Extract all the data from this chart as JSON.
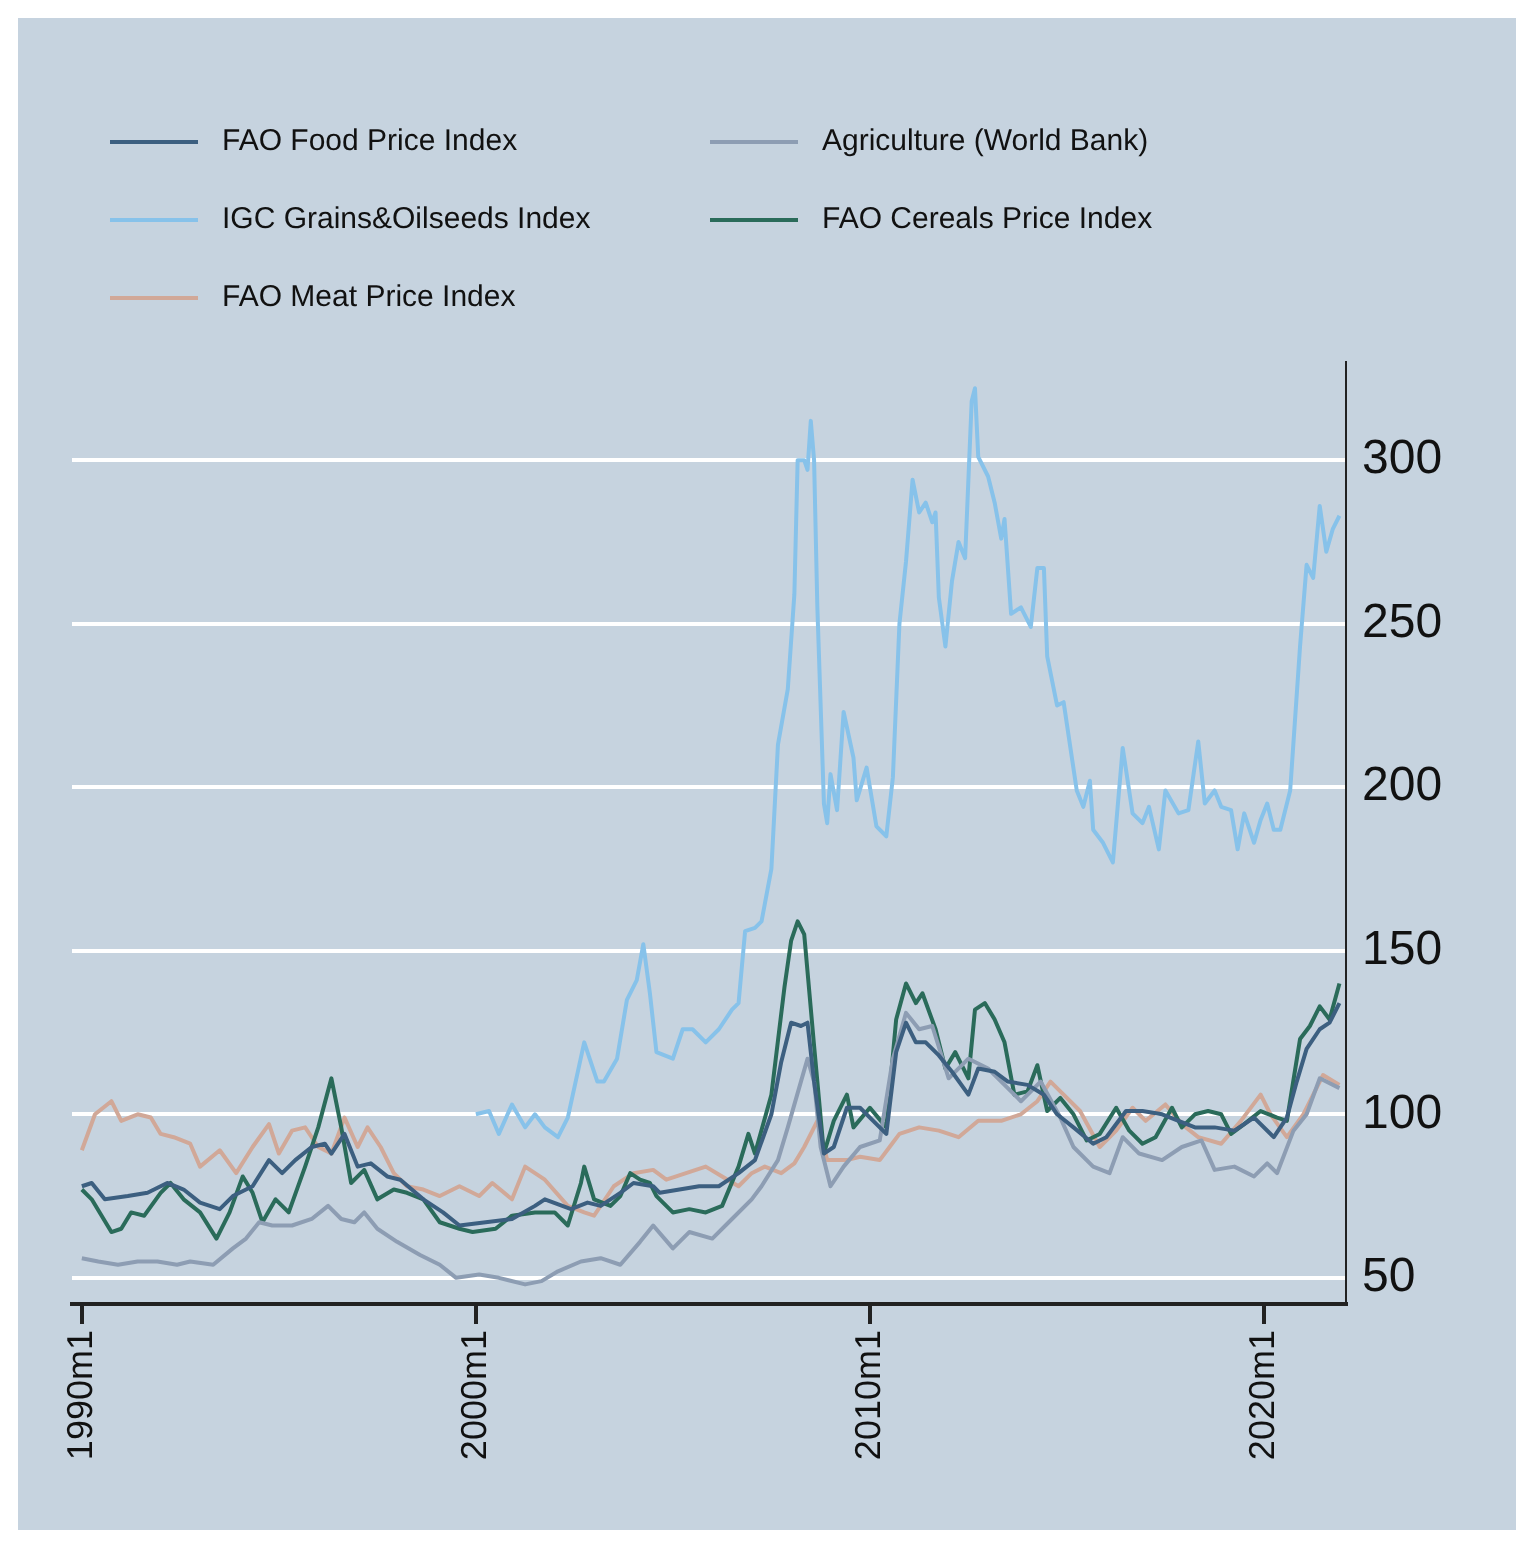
{
  "chart_data": {
    "type": "line",
    "legend": "top left",
    "grid": "y",
    "marker": "none",
    "line_style": "solid",
    "xlim": [
      "1989-10",
      "2022-02"
    ],
    "xticks": [
      {
        "value": "1990-01",
        "label": "1990m1"
      },
      {
        "value": "2000-01",
        "label": "2000m1"
      },
      {
        "value": "2010-01",
        "label": "2010m1"
      },
      {
        "value": "2020-01",
        "label": "2020m1"
      }
    ],
    "ylim": [
      42,
      330
    ],
    "yticks": [
      50,
      100,
      150,
      200,
      250,
      300
    ],
    "series": [
      {
        "name": "FAO Food Price Index",
        "color": "#3c5f80",
        "x": [
          "1990-01",
          "1990-04",
          "1990-08",
          "1991-03",
          "1991-09",
          "1992-03",
          "1992-08",
          "1993-01",
          "1993-07",
          "1993-11",
          "1994-05",
          "1994-10",
          "1995-02",
          "1995-06",
          "1995-11",
          "1996-03",
          "1996-05",
          "1996-09",
          "1997-01",
          "1997-05",
          "1997-10",
          "1998-02",
          "1998-09",
          "1999-03",
          "1999-08",
          "2000-04",
          "2000-12",
          "2001-07",
          "2001-10",
          "2002-06",
          "2002-11",
          "2003-03",
          "2003-09",
          "2004-01",
          "2004-07",
          "2004-09",
          "2005-03",
          "2005-09",
          "2006-03",
          "2006-09",
          "2007-02",
          "2007-07",
          "2007-10",
          "2008-01",
          "2008-04",
          "2008-06",
          "2008-08",
          "2008-11",
          "2009-02",
          "2009-06",
          "2009-10",
          "2010-02",
          "2010-06",
          "2010-09",
          "2010-12",
          "2011-03",
          "2011-06",
          "2011-10",
          "2012-02",
          "2012-07",
          "2012-10",
          "2013-03",
          "2013-07",
          "2014-01",
          "2014-06",
          "2014-10",
          "2015-03",
          "2015-09",
          "2016-01",
          "2016-07",
          "2016-12",
          "2017-06",
          "2017-11",
          "2018-04",
          "2018-10",
          "2019-04",
          "2019-10",
          "2020-04",
          "2020-08",
          "2020-11",
          "2021-02",
          "2021-06",
          "2021-09",
          "2021-12"
        ],
        "values": [
          78,
          79,
          74,
          75,
          76,
          79,
          77,
          73,
          71,
          75,
          78,
          86,
          82,
          86,
          90,
          91,
          88,
          94,
          84,
          85,
          81,
          80,
          74,
          70,
          66,
          67,
          68,
          72,
          74,
          71,
          73,
          72,
          76,
          79,
          78,
          76,
          77,
          78,
          78,
          82,
          86,
          100,
          116,
          128,
          127,
          128,
          110,
          88,
          90,
          102,
          102,
          98,
          94,
          119,
          128,
          122,
          122,
          118,
          113,
          106,
          114,
          113,
          110,
          109,
          106,
          100,
          96,
          91,
          93,
          101,
          101,
          100,
          98,
          96,
          96,
          95,
          99,
          93,
          99,
          110,
          120,
          126,
          128,
          134
        ]
      },
      {
        "name": "Agriculture (World Bank)",
        "color": "#8d9db3",
        "x": [
          "1990-01",
          "1990-06",
          "1990-12",
          "1991-06",
          "1991-12",
          "1992-06",
          "1992-10",
          "1993-05",
          "1993-11",
          "1994-03",
          "1994-07",
          "1994-11",
          "1995-05",
          "1995-11",
          "1996-04",
          "1996-08",
          "1996-12",
          "1997-03",
          "1997-07",
          "1998-01",
          "1998-08",
          "1999-02",
          "1999-07",
          "2000-02",
          "2000-08",
          "2001-04",
          "2001-09",
          "2002-02",
          "2002-09",
          "2003-03",
          "2003-09",
          "2004-03",
          "2004-07",
          "2005-01",
          "2005-06",
          "2006-01",
          "2006-07",
          "2007-01",
          "2007-04",
          "2007-09",
          "2007-12",
          "2008-04",
          "2008-06",
          "2008-08",
          "2008-10",
          "2009-01",
          "2009-05",
          "2009-10",
          "2010-04",
          "2010-08",
          "2010-12",
          "2011-04",
          "2011-08",
          "2012-01",
          "2012-07",
          "2013-01",
          "2013-05",
          "2013-11",
          "2014-05",
          "2014-11",
          "2015-03",
          "2015-09",
          "2016-02",
          "2016-06",
          "2016-11",
          "2017-06",
          "2017-12",
          "2018-06",
          "2018-10",
          "2019-04",
          "2019-10",
          "2020-02",
          "2020-05",
          "2020-10",
          "2021-02",
          "2021-06",
          "2021-12"
        ],
        "values": [
          56,
          55,
          54,
          55,
          55,
          54,
          55,
          54,
          59,
          62,
          67,
          66,
          66,
          68,
          72,
          68,
          67,
          70,
          65,
          61,
          57,
          54,
          50,
          51,
          50,
          48,
          49,
          52,
          55,
          56,
          54,
          61,
          66,
          59,
          64,
          62,
          68,
          74,
          78,
          86,
          96,
          110,
          117,
          110,
          90,
          78,
          84,
          90,
          92,
          117,
          131,
          126,
          127,
          111,
          117,
          114,
          110,
          104,
          110,
          99,
          90,
          84,
          82,
          93,
          88,
          86,
          90,
          92,
          83,
          84,
          81,
          85,
          82,
          95,
          100,
          111,
          108
        ]
      },
      {
        "name": "IGC Grains&Oilseeds Index",
        "color": "#87c2ea",
        "x": [
          "2000-01",
          "2000-05",
          "2000-08",
          "2000-12",
          "2001-04",
          "2001-07",
          "2001-10",
          "2002-02",
          "2002-05",
          "2002-10",
          "2003-02",
          "2003-04",
          "2003-08",
          "2003-11",
          "2004-02",
          "2004-04",
          "2004-06",
          "2004-08",
          "2005-01",
          "2005-04",
          "2005-07",
          "2005-11",
          "2006-03",
          "2006-07",
          "2006-09",
          "2006-11",
          "2007-02",
          "2007-04",
          "2007-07",
          "2007-09",
          "2007-12",
          "2008-02",
          "2008-03",
          "2008-05",
          "2008-06",
          "2008-07",
          "2008-08",
          "2008-09",
          "2008-11",
          "2008-12",
          "2009-01",
          "2009-03",
          "2009-05",
          "2009-08",
          "2009-09",
          "2009-12",
          "2010-03",
          "2010-06",
          "2010-08",
          "2010-10",
          "2010-12",
          "2011-02",
          "2011-04",
          "2011-06",
          "2011-08",
          "2011-09",
          "2011-10",
          "2011-12",
          "2012-02",
          "2012-04",
          "2012-06",
          "2012-08",
          "2012-09",
          "2012-10",
          "2013-01",
          "2013-03",
          "2013-05",
          "2013-06",
          "2013-08",
          "2013-11",
          "2014-02",
          "2014-04",
          "2014-06",
          "2014-07",
          "2014-10",
          "2014-12",
          "2015-04",
          "2015-06",
          "2015-08",
          "2015-09",
          "2015-12",
          "2016-03",
          "2016-06",
          "2016-09",
          "2016-12",
          "2017-02",
          "2017-05",
          "2017-07",
          "2017-11",
          "2018-02",
          "2018-05",
          "2018-07",
          "2018-10",
          "2018-12",
          "2019-03",
          "2019-05",
          "2019-07",
          "2019-10",
          "2019-12",
          "2020-02",
          "2020-04",
          "2020-06",
          "2020-09",
          "2020-12",
          "2021-02",
          "2021-04",
          "2021-06",
          "2021-08",
          "2021-10",
          "2021-12"
        ],
        "values": [
          100,
          101,
          94,
          103,
          96,
          100,
          96,
          93,
          99,
          122,
          110,
          110,
          117,
          135,
          141,
          152,
          137,
          119,
          117,
          126,
          126,
          122,
          126,
          132,
          134,
          156,
          157,
          159,
          175,
          213,
          230,
          259,
          300,
          300,
          297,
          312,
          300,
          255,
          195,
          189,
          204,
          193,
          223,
          209,
          196,
          206,
          188,
          185,
          203,
          250,
          269,
          294,
          284,
          287,
          281,
          284,
          258,
          243,
          263,
          275,
          270,
          318,
          322,
          301,
          295,
          287,
          276,
          282,
          253,
          255,
          249,
          267,
          267,
          240,
          225,
          226,
          199,
          194,
          202,
          187,
          183,
          177,
          212,
          192,
          189,
          194,
          181,
          199,
          192,
          193,
          214,
          195,
          199,
          194,
          193,
          181,
          192,
          183,
          190,
          195,
          187,
          187,
          199,
          243,
          268,
          264,
          286,
          272,
          279,
          283
        ]
      },
      {
        "name": "FAO Cereals Price Index",
        "color": "#2a6b5a",
        "x": [
          "1990-01",
          "1990-04",
          "1990-10",
          "1991-01",
          "1991-04",
          "1991-08",
          "1992-01",
          "1992-04",
          "1992-08",
          "1993-01",
          "1993-06",
          "1993-10",
          "1994-02",
          "1994-05",
          "1994-08",
          "1994-12",
          "1995-04",
          "1995-09",
          "1996-01",
          "1996-05",
          "1996-08",
          "1996-11",
          "1997-03",
          "1997-07",
          "1997-12",
          "1998-04",
          "1998-09",
          "1999-02",
          "1999-08",
          "1999-12",
          "2000-07",
          "2000-12",
          "2001-07",
          "2002-01",
          "2002-05",
          "2002-09",
          "2002-10",
          "2003-01",
          "2003-06",
          "2003-09",
          "2003-12",
          "2004-03",
          "2004-06",
          "2004-08",
          "2005-01",
          "2005-06",
          "2005-11",
          "2006-04",
          "2006-09",
          "2006-12",
          "2007-02",
          "2007-07",
          "2007-11",
          "2008-01",
          "2008-03",
          "2008-05",
          "2008-08",
          "2008-11",
          "2009-02",
          "2009-06",
          "2009-08",
          "2010-01",
          "2010-06",
          "2010-09",
          "2010-12",
          "2011-03",
          "2011-05",
          "2011-09",
          "2011-12",
          "2012-03",
          "2012-07",
          "2012-09",
          "2012-12",
          "2013-03",
          "2013-06",
          "2013-09",
          "2014-01",
          "2014-04",
          "2014-07",
          "2014-11",
          "2015-03",
          "2015-07",
          "2015-11",
          "2016-04",
          "2016-08",
          "2016-12",
          "2017-04",
          "2017-09",
          "2017-12",
          "2018-04",
          "2018-08",
          "2018-12",
          "2019-03",
          "2019-07",
          "2019-12",
          "2020-05",
          "2020-08",
          "2020-12",
          "2021-03",
          "2021-06",
          "2021-09",
          "2021-12"
        ],
        "values": [
          77,
          74,
          64,
          65,
          70,
          69,
          76,
          79,
          74,
          70,
          62,
          70,
          81,
          76,
          67,
          74,
          70,
          84,
          96,
          111,
          96,
          79,
          83,
          74,
          77,
          76,
          74,
          67,
          65,
          64,
          65,
          69,
          70,
          70,
          66,
          79,
          84,
          74,
          72,
          75,
          82,
          80,
          79,
          75,
          70,
          71,
          70,
          72,
          84,
          94,
          88,
          106,
          139,
          153,
          159,
          155,
          121,
          88,
          98,
          106,
          96,
          102,
          96,
          129,
          140,
          134,
          137,
          126,
          114,
          119,
          111,
          132,
          134,
          129,
          122,
          106,
          107,
          115,
          101,
          105,
          100,
          92,
          94,
          102,
          95,
          91,
          93,
          102,
          96,
          100,
          101,
          100,
          94,
          97,
          101,
          99,
          98,
          123,
          127,
          133,
          129,
          140
        ]
      },
      {
        "name": "FAO Meat Price Index",
        "color": "#d1a898",
        "x": [
          "1990-01",
          "1990-05",
          "1990-10",
          "1991-01",
          "1991-06",
          "1991-10",
          "1992-01",
          "1992-05",
          "1992-10",
          "1993-01",
          "1993-07",
          "1993-12",
          "1994-05",
          "1994-10",
          "1995-01",
          "1995-05",
          "1995-09",
          "1996-01",
          "1996-05",
          "1996-09",
          "1997-01",
          "1997-04",
          "1997-08",
          "1997-12",
          "1998-04",
          "1998-09",
          "1999-02",
          "1999-08",
          "2000-02",
          "2000-06",
          "2000-12",
          "2001-04",
          "2001-10",
          "2002-05",
          "2002-10",
          "2003-01",
          "2003-07",
          "2004-01",
          "2004-07",
          "2004-11",
          "2005-05",
          "2005-11",
          "2006-04",
          "2006-09",
          "2007-01",
          "2007-05",
          "2007-10",
          "2008-02",
          "2008-05",
          "2008-09",
          "2008-12",
          "2009-06",
          "2009-10",
          "2010-04",
          "2010-07",
          "2010-10",
          "2011-04",
          "2011-10",
          "2012-04",
          "2012-10",
          "2013-05",
          "2013-11",
          "2014-04",
          "2014-08",
          "2014-12",
          "2015-05",
          "2015-11",
          "2016-04",
          "2016-09",
          "2017-01",
          "2017-07",
          "2017-12",
          "2018-05",
          "2018-12",
          "2019-06",
          "2019-12",
          "2020-03",
          "2020-08",
          "2021-01",
          "2021-07",
          "2021-12"
        ],
        "values": [
          89,
          100,
          104,
          98,
          100,
          99,
          94,
          93,
          91,
          84,
          89,
          82,
          90,
          97,
          88,
          95,
          96,
          90,
          88,
          99,
          90,
          96,
          90,
          82,
          78,
          77,
          75,
          78,
          75,
          79,
          74,
          84,
          80,
          72,
          70,
          69,
          78,
          82,
          83,
          80,
          82,
          84,
          81,
          78,
          82,
          84,
          82,
          85,
          90,
          98,
          86,
          86,
          87,
          86,
          90,
          94,
          96,
          95,
          93,
          98,
          98,
          100,
          104,
          110,
          106,
          101,
          90,
          95,
          102,
          98,
          103,
          97,
          93,
          91,
          98,
          106,
          100,
          93,
          100,
          112,
          109
        ]
      }
    ]
  }
}
